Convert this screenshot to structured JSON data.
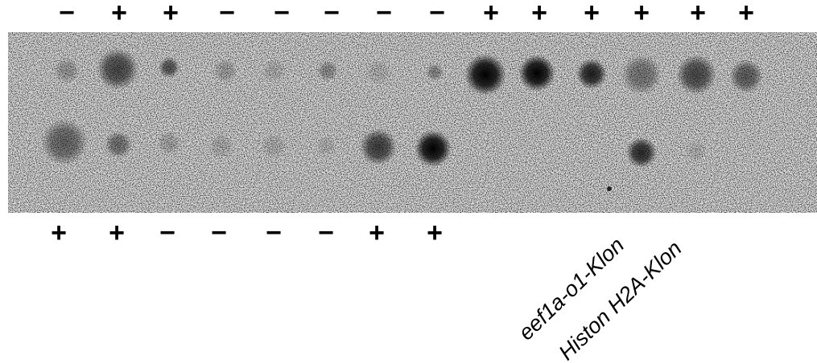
{
  "top_signs": [
    "−",
    "+",
    "+",
    "−",
    "−",
    "−",
    "−",
    "−",
    "+",
    "+",
    "+",
    "+",
    "+",
    "+"
  ],
  "bottom_signs": [
    "+",
    "+",
    "−",
    "−",
    "−",
    "−",
    "+",
    "+"
  ],
  "clone_labels": [
    "eef1a-o1-Klon",
    "Histon H2A-Klon"
  ]
}
